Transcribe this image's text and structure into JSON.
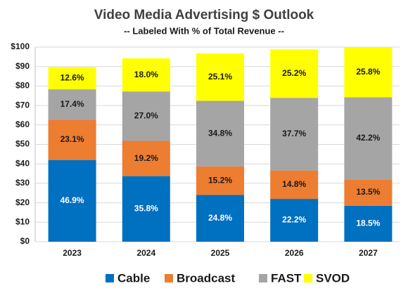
{
  "chart_data": {
    "type": "stacked_bar",
    "title": "Video Media Advertising $ Outlook",
    "subtitle": "-- Labeled With % of Total Revenue --",
    "categories": [
      "2023",
      "2024",
      "2025",
      "2026",
      "2027"
    ],
    "series": [
      {
        "name": "Cable",
        "color": "#0070c0",
        "label_color": "#ffffff",
        "values": [
          42.0,
          33.7,
          24.0,
          22.0,
          18.5
        ],
        "labels": [
          "46.9%",
          "35.8%",
          "24.8%",
          "22.2%",
          "18.5%"
        ]
      },
      {
        "name": "Broadcast",
        "color": "#ed7d31",
        "label_color": "#1a1a1a",
        "values": [
          20.7,
          18.1,
          14.7,
          14.6,
          13.5
        ],
        "labels": [
          "23.1%",
          "19.2%",
          "15.2%",
          "14.8%",
          "13.5%"
        ]
      },
      {
        "name": "FAST",
        "color": "#a5a5a5",
        "label_color": "#1a1a1a",
        "values": [
          15.6,
          25.4,
          33.7,
          37.3,
          42.2
        ],
        "labels": [
          "17.4%",
          "27.0%",
          "34.8%",
          "37.7%",
          "42.2%"
        ]
      },
      {
        "name": "SVOD",
        "color": "#ffff00",
        "label_color": "#1a1a1a",
        "values": [
          11.3,
          17.0,
          24.3,
          24.9,
          25.8
        ],
        "labels": [
          "12.6%",
          "18.0%",
          "25.1%",
          "25.2%",
          "25.8%"
        ]
      }
    ],
    "ylim": [
      0,
      100
    ],
    "yticks": [
      {
        "value": 0,
        "label": "$0"
      },
      {
        "value": 10,
        "label": "$10"
      },
      {
        "value": 20,
        "label": "$20"
      },
      {
        "value": 30,
        "label": "$30"
      },
      {
        "value": 40,
        "label": "$40"
      },
      {
        "value": 50,
        "label": "$50"
      },
      {
        "value": 60,
        "label": "$60"
      },
      {
        "value": 70,
        "label": "$70"
      },
      {
        "value": 80,
        "label": "$80"
      },
      {
        "value": 90,
        "label": "$90"
      },
      {
        "value": 100,
        "label": "$100"
      }
    ],
    "grid": true,
    "legend": "bottom"
  }
}
